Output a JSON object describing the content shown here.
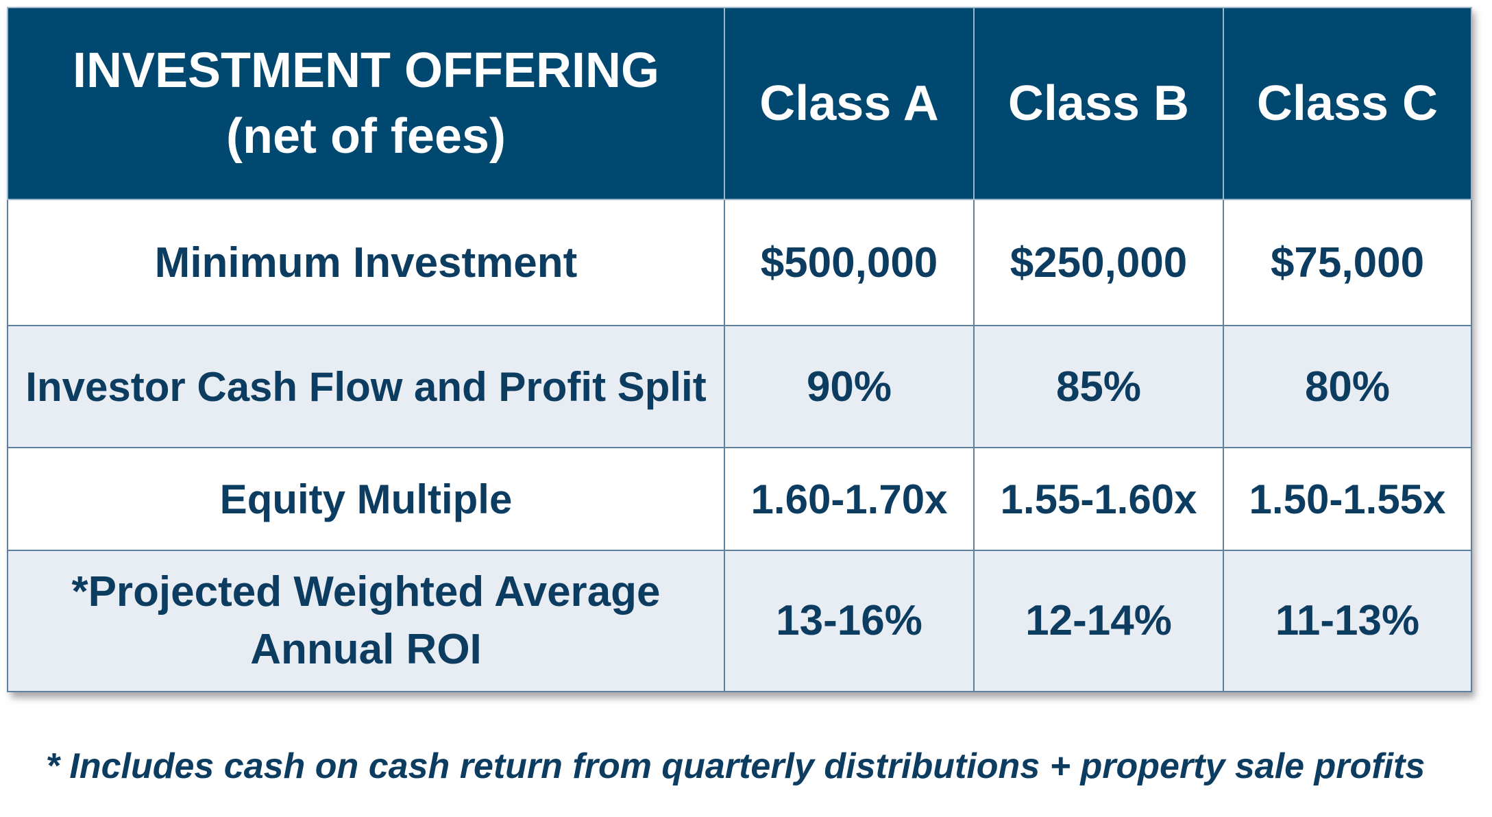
{
  "table": {
    "header": {
      "title_line1": "INVESTMENT OFFERING",
      "title_line2": "(net of fees)",
      "classes": [
        "Class A",
        "Class B",
        "Class C"
      ]
    },
    "rows": [
      {
        "label_line1": "Minimum Investment",
        "label_line2": "",
        "values": [
          "$500,000",
          "$250,000",
          "$75,000"
        ]
      },
      {
        "label_line1": "Investor Cash Flow and Profit Split",
        "label_line2": "",
        "values": [
          "90%",
          "85%",
          "80%"
        ]
      },
      {
        "label_line1": "Equity Multiple",
        "label_line2": "",
        "values": [
          "1.60-1.70x",
          "1.55-1.60x",
          "1.50-1.55x"
        ]
      },
      {
        "label_line1": "*Projected Weighted Average",
        "label_line2": "Annual ROI",
        "values": [
          "13-16%",
          "12-14%",
          "11-13%"
        ]
      }
    ]
  },
  "footnote": "* Includes cash on cash return from quarterly distributions + property sale profits",
  "colors": {
    "header_bg": "#004870",
    "header_text": "#ffffff",
    "body_text": "#0d3c61",
    "row_shade": "#e8ecf3",
    "row_white": "#ffffff"
  }
}
